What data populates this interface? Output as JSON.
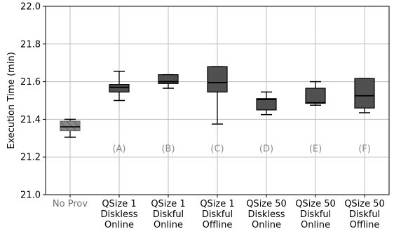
{
  "chart_data": {
    "type": "box",
    "ylabel": "Execution Time (min)",
    "xlabel": "",
    "title": "",
    "ylim": [
      21.0,
      22.0
    ],
    "yticks": [
      "21.0",
      "21.2",
      "21.4",
      "21.6",
      "21.8",
      "22.0"
    ],
    "grid": true,
    "categories": [
      {
        "lines": [
          "No Prov"
        ],
        "note": "",
        "muted": true,
        "whisker_low": 21.305,
        "q1": 21.34,
        "median": 21.36,
        "q3": 21.39,
        "whisker_high": 21.4,
        "fill": "#8a8a8a",
        "hatch": true
      },
      {
        "lines": [
          "QSize 1",
          "Diskless",
          "Online"
        ],
        "note": "(A)",
        "muted": false,
        "whisker_low": 21.5,
        "q1": 21.545,
        "median": 21.57,
        "q3": 21.585,
        "whisker_high": 21.655,
        "fill": "#505050",
        "hatch": false
      },
      {
        "lines": [
          "QSize 1",
          "Diskful",
          "Online"
        ],
        "note": "(B)",
        "muted": false,
        "whisker_low": 21.565,
        "q1": 21.59,
        "median": 21.6,
        "q3": 21.637,
        "whisker_high": 21.637,
        "fill": "#505050",
        "hatch": false
      },
      {
        "lines": [
          "QSize 1",
          "Diskful",
          "Offline"
        ],
        "note": "(C)",
        "muted": false,
        "whisker_low": 21.375,
        "q1": 21.545,
        "median": 21.595,
        "q3": 21.68,
        "whisker_high": 21.68,
        "fill": "#505050",
        "hatch": false
      },
      {
        "lines": [
          "QSize 50",
          "Diskless",
          "Online"
        ],
        "note": "(D)",
        "muted": false,
        "whisker_low": 21.425,
        "q1": 21.45,
        "median": 21.505,
        "q3": 21.51,
        "whisker_high": 21.545,
        "fill": "#505050",
        "hatch": false
      },
      {
        "lines": [
          "QSize 50",
          "Diskful",
          "Online"
        ],
        "note": "(E)",
        "muted": false,
        "whisker_low": 21.475,
        "q1": 21.485,
        "median": 21.488,
        "q3": 21.565,
        "whisker_high": 21.6,
        "fill": "#505050",
        "hatch": false
      },
      {
        "lines": [
          "QSize 50",
          "Diskful",
          "Offline"
        ],
        "note": "(F)",
        "muted": false,
        "whisker_low": 21.435,
        "q1": 21.46,
        "median": 21.525,
        "q3": 21.617,
        "whisker_high": 21.617,
        "fill": "#505050",
        "hatch": false
      }
    ],
    "note_y": 21.245
  }
}
